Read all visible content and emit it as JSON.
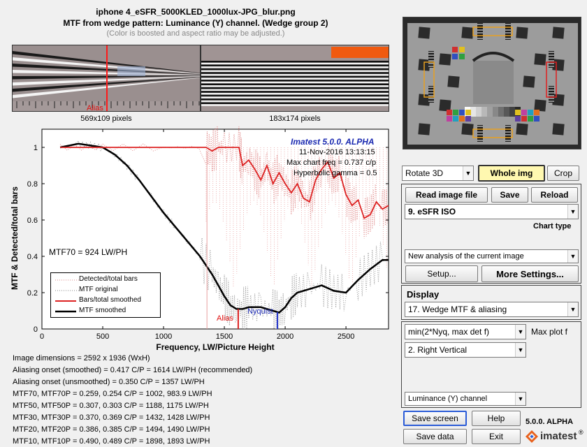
{
  "header": {
    "title": "iphone 4_eSFR_5000KLED_1000lux-JPG_blur.png",
    "subtitle": "MTF from wedge pattern:  Luminance (Y) channel.  (Wedge group 2)",
    "note": "(Color is boosted and aspect ratio may be adjusted.)"
  },
  "thumbs": {
    "left_caption": "569x109 pixels",
    "right_caption": "183x174 pixels",
    "alias_label": "Alias"
  },
  "plot": {
    "watermark": "Imatest 5.0.0. ALPHA",
    "date": "11-Nov-2016 13:13:15",
    "max_freq": "Max chart freq = 0.737 c/p",
    "gamma": "Hyperbolic gamma = 0.5",
    "mtf70_label": "MTF70 = 924 LW/PH",
    "alias_marker": "Alias",
    "nyquist_marker": "Nyquist",
    "legend": [
      "Detected/total bars",
      "MTF original",
      "Bars/total smoothed",
      "MTF smoothed"
    ]
  },
  "chart_data": {
    "type": "line",
    "title": "",
    "xlabel": "Frequency, LW/Picture Height",
    "ylabel": "MTF & Detected/total bars",
    "xlim": [
      0,
      2850
    ],
    "ylim": [
      0,
      1.1
    ],
    "xticks": [
      0,
      500,
      1000,
      1500,
      2000,
      2500
    ],
    "yticks": [
      0,
      0.2,
      0.4,
      0.6,
      0.8,
      1
    ],
    "series": [
      {
        "name": "MTF smoothed",
        "color": "#000000",
        "x": [
          150,
          300,
          400,
          500,
          600,
          700,
          800,
          900,
          1000,
          1100,
          1200,
          1300,
          1400,
          1450,
          1500,
          1550,
          1600,
          1650,
          1700,
          1800,
          1900,
          1950,
          2000,
          2050,
          2100,
          2200,
          2300,
          2400,
          2500,
          2600,
          2700,
          2800,
          2850
        ],
        "y": [
          1.0,
          1.02,
          1.01,
          1.0,
          0.96,
          0.9,
          0.82,
          0.73,
          0.64,
          0.56,
          0.48,
          0.4,
          0.3,
          0.24,
          0.18,
          0.13,
          0.11,
          0.11,
          0.12,
          0.12,
          0.1,
          0.09,
          0.12,
          0.17,
          0.2,
          0.22,
          0.24,
          0.21,
          0.2,
          0.27,
          0.33,
          0.38,
          0.38
        ]
      },
      {
        "name": "Bars/total smoothed",
        "color": "#dd2222",
        "x": [
          150,
          500,
          1000,
          1350,
          1400,
          1450,
          1500,
          1620,
          1650,
          1700,
          1750,
          1800,
          1850,
          1900,
          1950,
          2000,
          2050,
          2100,
          2150,
          2200,
          2250,
          2300,
          2350,
          2400,
          2450,
          2500,
          2550,
          2600,
          2650,
          2700,
          2750,
          2800,
          2850
        ],
        "y": [
          1.0,
          1.0,
          1.0,
          1.0,
          0.98,
          1.0,
          1.0,
          1.0,
          0.9,
          0.93,
          0.88,
          0.82,
          0.9,
          0.8,
          0.86,
          0.8,
          0.75,
          0.8,
          0.72,
          0.7,
          0.82,
          0.88,
          0.92,
          0.83,
          0.86,
          0.74,
          0.68,
          0.71,
          0.61,
          0.63,
          0.7,
          0.66,
          0.68
        ]
      }
    ],
    "markers": [
      {
        "name": "Alias",
        "x": 1614,
        "color": "#dd2222"
      },
      {
        "name": "Nyquist",
        "x": 1936,
        "color": "#2233cc"
      }
    ]
  },
  "info": [
    "Image dimensions = 2592 x 1936 (WxH)",
    "Aliasing onset (smoothed) = 0.417 C/P  = 1614 LW/PH (recommended)",
    "Aliasing onset (unsmoothed) = 0.350 C/P  = 1357 LW/PH",
    "MTF70, MTF70P = 0.259, 0.254 C/P  = 1002, 983.9 LW/PH",
    "MTF50, MTF50P = 0.307, 0.303 C/P  = 1188, 1175 LW/PH",
    "MTF30, MTF30P = 0.370, 0.369 C/P  = 1432, 1428 LW/PH",
    "MTF20, MTF20P = 0.386, 0.385 C/P  = 1494, 1490 LW/PH",
    "MTF10, MTF10P = 0.490, 0.489 C/P  = 1898, 1893 LW/PH"
  ],
  "controls": {
    "rotate": "Rotate 3D",
    "whole_img": "Whole img",
    "crop": "Crop",
    "read_image": "Read image file",
    "save": "Save",
    "reload": "Reload",
    "chart_select": "9. eSFR ISO",
    "chart_type_label": "Chart type",
    "analysis_select": "New analysis of the current image",
    "setup": "Setup...",
    "more_settings": "More Settings...",
    "display_label": "Display",
    "display_select": "17. Wedge MTF & aliasing",
    "maxplot_select": "min(2*Nyq, max det f)",
    "maxplot_label": "Max plot f",
    "wedge_select": "2.  Right Vertical",
    "channel_select": "Luminance (Y) channel",
    "save_screen": "Save screen",
    "help": "Help",
    "save_data": "Save data",
    "exit": "Exit",
    "version": "5.0.0. ALPHA",
    "brand": "imatest",
    "registered": "®"
  }
}
